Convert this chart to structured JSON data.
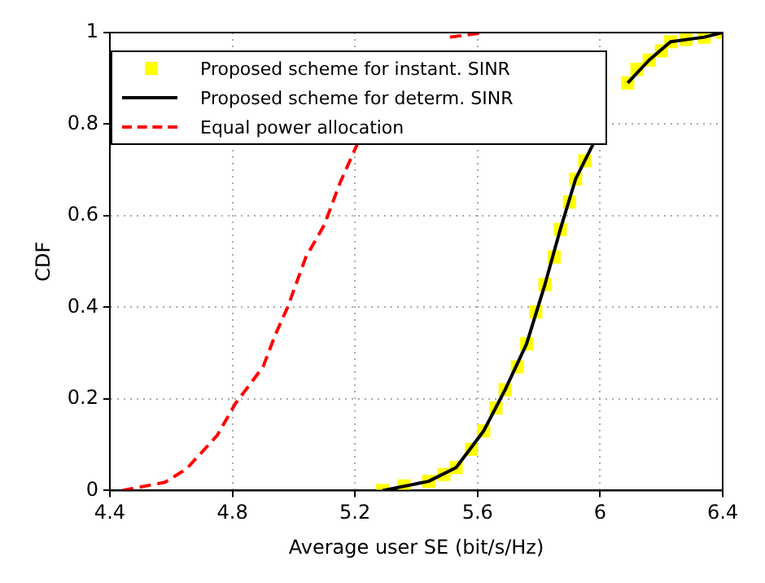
{
  "chart_data": {
    "type": "line",
    "xlabel": "Average user SE (bit/s/Hz)",
    "ylabel": "CDF",
    "xlim": [
      4.4,
      6.4
    ],
    "ylim": [
      0,
      1
    ],
    "xticks": [
      4.4,
      4.8,
      5.2,
      5.6,
      6,
      6.4
    ],
    "yticks": [
      0,
      0.2,
      0.4,
      0.6,
      0.8,
      1
    ],
    "grid": true,
    "legend": "top left",
    "series": [
      {
        "name": "Proposed scheme for instant. SINR",
        "type": "scatter",
        "marker": "square",
        "color": "#ffff00",
        "x": [
          5.29,
          5.36,
          5.44,
          5.49,
          5.53,
          5.58,
          5.62,
          5.66,
          5.69,
          5.73,
          5.76,
          5.79,
          5.82,
          5.85,
          5.87,
          5.9,
          5.92,
          5.95,
          6.09,
          6.12,
          6.16,
          6.2,
          6.23,
          6.28,
          6.34,
          6.4
        ],
        "values": [
          0,
          0.01,
          0.02,
          0.035,
          0.05,
          0.09,
          0.13,
          0.18,
          0.22,
          0.27,
          0.32,
          0.39,
          0.45,
          0.51,
          0.57,
          0.63,
          0.68,
          0.72,
          0.89,
          0.92,
          0.94,
          0.96,
          0.98,
          0.985,
          0.99,
          1
        ]
      },
      {
        "name": "Proposed scheme for determ. SINR",
        "type": "line",
        "marker": "none",
        "line_style": "solid",
        "color": "#000000",
        "x": [
          5.29,
          5.44,
          5.53,
          5.62,
          5.69,
          5.76,
          5.82,
          5.87,
          5.92,
          5.98,
          6.03,
          6.09,
          6.16,
          6.23,
          6.34,
          6.4
        ],
        "values": [
          0,
          0.02,
          0.05,
          0.13,
          0.22,
          0.32,
          0.45,
          0.57,
          0.68,
          0.76,
          null,
          0.89,
          0.94,
          0.98,
          0.99,
          1
        ]
      },
      {
        "name": "Equal power allocation",
        "type": "line",
        "marker": "none",
        "line_style": "dashed",
        "color": "#ff0000",
        "x": [
          4.44,
          4.58,
          4.65,
          4.75,
          4.81,
          4.9,
          4.94,
          4.98,
          5.04,
          5.1,
          5.15,
          5.21,
          5.3,
          5.4,
          5.51,
          5.62
        ],
        "values": [
          0,
          0.018,
          0.047,
          0.12,
          0.19,
          0.27,
          0.34,
          0.4,
          0.51,
          0.58,
          0.67,
          0.76,
          null,
          null,
          0.99,
          1
        ]
      }
    ]
  }
}
